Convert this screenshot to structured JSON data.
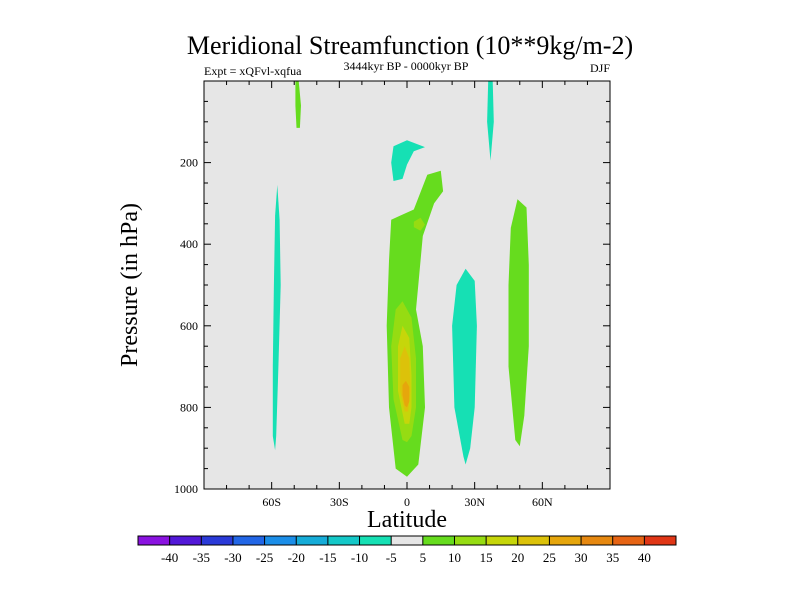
{
  "chart_data": {
    "type": "contour",
    "title": "Meridional Streamfunction (10**9kg/m-2)",
    "subtitle_left": "Expt = xQFvl-xqfua",
    "subtitle_center": "3444kyr BP - 0000kyr BP",
    "subtitle_right": "DJF",
    "xlabel": "Latitude",
    "ylabel": "Pressure (in hPa)",
    "xlim": [
      -90,
      90
    ],
    "ylim": [
      1000,
      0
    ],
    "x_ticks": [
      {
        "value": -60,
        "label": "60S"
      },
      {
        "value": -30,
        "label": "30S"
      },
      {
        "value": 0,
        "label": "0"
      },
      {
        "value": 30,
        "label": "30N"
      },
      {
        "value": 60,
        "label": "60N"
      }
    ],
    "y_ticks": [
      {
        "value": 200,
        "label": "200"
      },
      {
        "value": 400,
        "label": "400"
      },
      {
        "value": 600,
        "label": "600"
      },
      {
        "value": 800,
        "label": "800"
      },
      {
        "value": 1000,
        "label": "1000"
      }
    ],
    "background_color": "#e6e6e6",
    "colorbar": {
      "labels": [
        "-40",
        "-35",
        "-30",
        "-25",
        "-20",
        "-15",
        "-10",
        "-5",
        "5",
        "10",
        "15",
        "20",
        "25",
        "30",
        "35",
        "40"
      ],
      "colors": [
        "#8a12e0",
        "#5218d8",
        "#2a3ad8",
        "#2266e6",
        "#1b8ee8",
        "#16acd8",
        "#14c8c8",
        "#16e0b4",
        "#e6e6e6",
        "#66dc1e",
        "#96dc12",
        "#c6d60a",
        "#dcc20a",
        "#e6a60c",
        "#e68810",
        "#e66414",
        "#e03616"
      ]
    },
    "regions": [
      {
        "name": "negative-lobe-60S",
        "level": -5,
        "color": "#16e0b4",
        "points": [
          [
            -58,
            870
          ],
          [
            -57,
            700
          ],
          [
            -56,
            500
          ],
          [
            -56.5,
            340
          ],
          [
            -57.5,
            255
          ],
          [
            -58.5,
            330
          ],
          [
            -59,
            500
          ],
          [
            -59.5,
            700
          ],
          [
            -59.5,
            870
          ],
          [
            -58.5,
            905
          ]
        ]
      },
      {
        "name": "positive-lobe-45S-upper",
        "level": 5,
        "color": "#66dc1e",
        "points": [
          [
            -48,
            0
          ],
          [
            -47,
            60
          ],
          [
            -47.5,
            115
          ],
          [
            -49,
            115
          ],
          [
            -49.5,
            60
          ],
          [
            -49.5,
            0
          ]
        ]
      },
      {
        "name": "negative-lobe-0-upper",
        "level": -5,
        "color": "#16e0b4",
        "points": [
          [
            -6,
            160
          ],
          [
            0,
            145
          ],
          [
            8,
            162
          ],
          [
            3,
            172
          ],
          [
            0,
            205
          ],
          [
            -2,
            240
          ],
          [
            -6,
            245
          ],
          [
            -7,
            200
          ]
        ]
      },
      {
        "name": "positive-lobe-equator",
        "level": 5,
        "color": "#66dc1e",
        "points": [
          [
            -5,
            950
          ],
          [
            -8,
            800
          ],
          [
            -9,
            600
          ],
          [
            -8,
            440
          ],
          [
            -7,
            340
          ],
          [
            -3,
            330
          ],
          [
            3,
            315
          ],
          [
            9,
            230
          ],
          [
            15,
            220
          ],
          [
            16,
            270
          ],
          [
            12,
            300
          ],
          [
            7,
            380
          ],
          [
            5,
            500
          ],
          [
            4,
            560
          ],
          [
            7,
            650
          ],
          [
            8,
            800
          ],
          [
            5,
            940
          ],
          [
            0,
            970
          ]
        ]
      },
      {
        "name": "positive-equator-level-10",
        "level": 10,
        "color": "#96dc12",
        "points": [
          [
            -2,
            880
          ],
          [
            -6,
            780
          ],
          [
            -7,
            650
          ],
          [
            -5,
            560
          ],
          [
            -2,
            540
          ],
          [
            2,
            580
          ],
          [
            4,
            680
          ],
          [
            4,
            800
          ],
          [
            2,
            870
          ],
          [
            0,
            885
          ]
        ]
      },
      {
        "name": "positive-equator-level-15",
        "level": 15,
        "color": "#c6d60a",
        "points": [
          [
            -1,
            840
          ],
          [
            -4,
            760
          ],
          [
            -4,
            650
          ],
          [
            -2,
            600
          ],
          [
            1,
            630
          ],
          [
            2,
            720
          ],
          [
            2,
            800
          ],
          [
            1,
            840
          ]
        ]
      },
      {
        "name": "positive-equator-level-20",
        "level": 20,
        "color": "#dcc20a",
        "points": [
          [
            -1,
            810
          ],
          [
            -3,
            760
          ],
          [
            -3,
            680
          ],
          [
            -1,
            650
          ],
          [
            1,
            680
          ],
          [
            1.5,
            760
          ],
          [
            0.5,
            810
          ]
        ]
      },
      {
        "name": "positive-equator-level-25",
        "level": 25,
        "color": "#e6a60c",
        "points": [
          [
            -1,
            795
          ],
          [
            -2,
            770
          ],
          [
            -2,
            745
          ],
          [
            -0.5,
            735
          ],
          [
            1,
            750
          ],
          [
            1,
            785
          ],
          [
            0,
            800
          ]
        ]
      },
      {
        "name": "positive-equator-small-inner",
        "level": 10,
        "color": "#96dc12",
        "points": [
          [
            3,
            345
          ],
          [
            6,
            335
          ],
          [
            8,
            352
          ],
          [
            6,
            367
          ],
          [
            3,
            358
          ]
        ]
      },
      {
        "name": "negative-lobe-30N",
        "level": -5,
        "color": "#16e0b4",
        "points": [
          [
            25,
            920
          ],
          [
            21,
            800
          ],
          [
            20,
            600
          ],
          [
            22,
            500
          ],
          [
            26,
            460
          ],
          [
            30,
            490
          ],
          [
            31,
            600
          ],
          [
            30,
            800
          ],
          [
            28,
            900
          ],
          [
            26,
            940
          ]
        ]
      },
      {
        "name": "negative-lobe-35N-upper",
        "level": -5,
        "color": "#16e0b4",
        "points": [
          [
            36,
            0
          ],
          [
            38,
            0
          ],
          [
            38.5,
            100
          ],
          [
            37,
            195
          ],
          [
            35.5,
            100
          ]
        ]
      },
      {
        "name": "positive-lobe-50N",
        "level": 5,
        "color": "#66dc1e",
        "points": [
          [
            48,
            880
          ],
          [
            45,
            700
          ],
          [
            45,
            500
          ],
          [
            46,
            360
          ],
          [
            49,
            290
          ],
          [
            53,
            310
          ],
          [
            54,
            450
          ],
          [
            54,
            650
          ],
          [
            52,
            820
          ],
          [
            50,
            895
          ]
        ]
      }
    ]
  }
}
